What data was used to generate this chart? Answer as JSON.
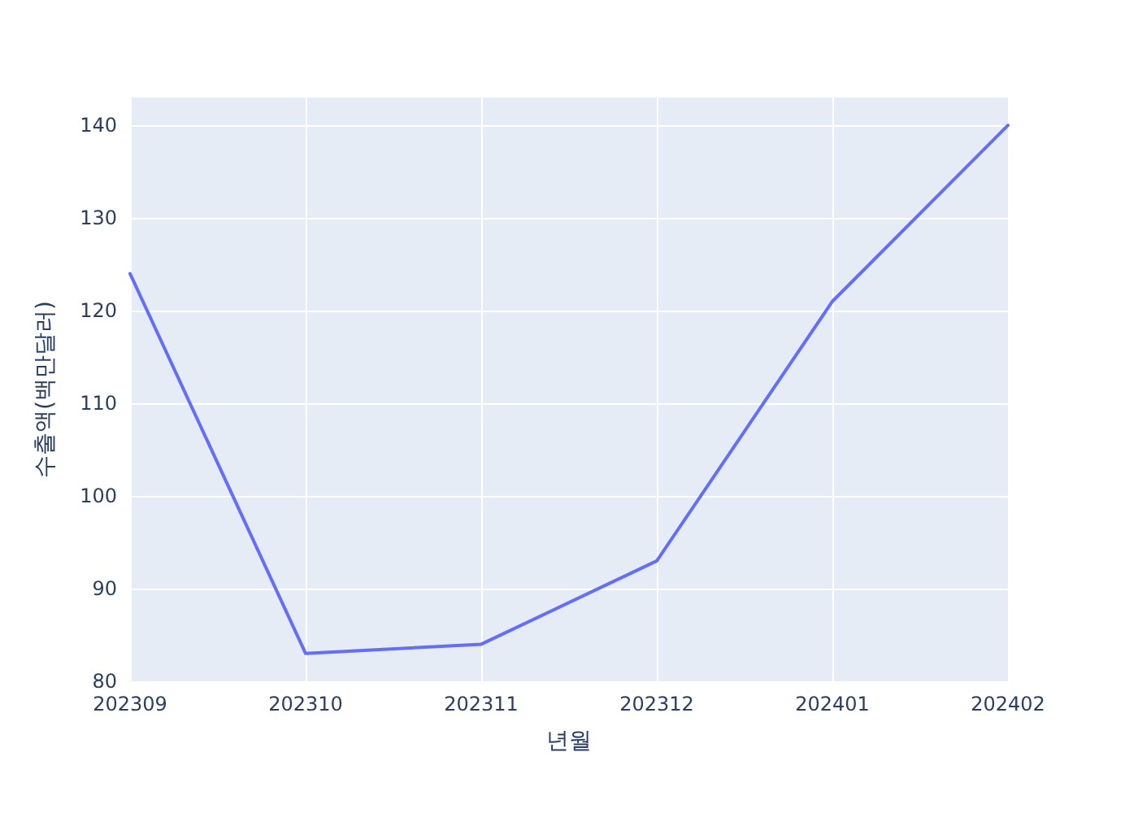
{
  "chart_data": {
    "type": "line",
    "xlabel": "년월",
    "ylabel": "수출액(백만달러)",
    "categories": [
      "202309",
      "202310",
      "202311",
      "202312",
      "202401",
      "202402"
    ],
    "series": [
      {
        "color": "#636efa",
        "values": [
          124,
          83,
          84,
          93,
          121,
          140
        ]
      }
    ],
    "ylim": [
      80,
      143
    ],
    "yticks": [
      80,
      90,
      100,
      110,
      120,
      130,
      140
    ],
    "grid": true
  }
}
